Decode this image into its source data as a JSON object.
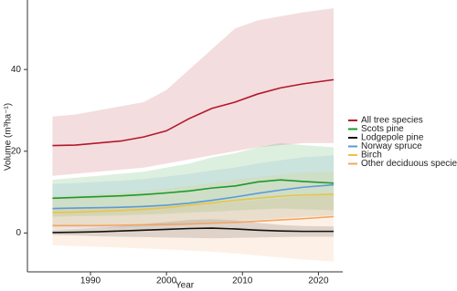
{
  "chart_data": {
    "type": "line",
    "x_label": "Year",
    "y_label": "Volume (m³ha⁻¹)",
    "x": [
      1985,
      1988,
      1991,
      1994,
      1997,
      2000,
      2003,
      2006,
      2009,
      2012,
      2015,
      2018,
      2022
    ],
    "xlim": [
      1981.7,
      2023.2
    ],
    "xticks": [
      1990,
      2000,
      2010,
      2020
    ],
    "ylim": [
      -9.5,
      57
    ],
    "yticks": [
      0,
      20,
      40
    ],
    "series": [
      {
        "name": "All tree species",
        "color": "#b2182b",
        "values": [
          21.4,
          21.5,
          22,
          22.5,
          23.5,
          25,
          28,
          30.5,
          32,
          34,
          35.5,
          36.5,
          37.5
        ],
        "upper": [
          28.5,
          29,
          30,
          31,
          32,
          35,
          40,
          45,
          50,
          52,
          53,
          54,
          55
        ],
        "lower": [
          14,
          14.5,
          15,
          15.5,
          16,
          17,
          18,
          19,
          20,
          21,
          21.5,
          22,
          22
        ]
      },
      {
        "name": "Scots pine",
        "color": "#1a9a2a",
        "values": [
          8.5,
          8.7,
          8.9,
          9.1,
          9.4,
          9.8,
          10.3,
          11,
          11.5,
          12.5,
          13,
          12.6,
          12.2
        ],
        "upper": [
          13,
          13.5,
          14,
          14.5,
          15,
          16,
          17,
          18.5,
          19.5,
          21,
          22,
          21.5,
          21
        ],
        "lower": [
          4,
          4.1,
          4.2,
          4.3,
          4.5,
          4.7,
          5,
          5.2,
          5.5,
          5.8,
          6,
          5.8,
          5.6
        ]
      },
      {
        "name": "Lodgepole pine",
        "color": "#111111",
        "values": [
          0.1,
          0.2,
          0.3,
          0.5,
          0.7,
          0.9,
          1.1,
          1.2,
          1,
          0.7,
          0.5,
          0.4,
          0.4
        ],
        "upper": [
          0.8,
          1,
          1.3,
          1.7,
          2.2,
          2.7,
          3.2,
          3.4,
          3.1,
          2.5,
          2,
          1.7,
          1.6
        ],
        "lower": [
          -0.5,
          -0.6,
          -0.8,
          -0.9,
          -1,
          -1.1,
          -1.2,
          -1.3,
          -1.2,
          -1.1,
          -1,
          -0.9,
          -0.9
        ]
      },
      {
        "name": "Norway spruce",
        "color": "#5b9bd5",
        "values": [
          6,
          6.1,
          6.2,
          6.3,
          6.5,
          6.8,
          7.3,
          8,
          8.8,
          9.7,
          10.5,
          11.2,
          11.8
        ],
        "upper": [
          12,
          12.2,
          12.5,
          12.8,
          13.2,
          13.8,
          14.5,
          15.3,
          16,
          17,
          17.8,
          18.5,
          19
        ],
        "lower": [
          1,
          1.1,
          1.2,
          1.3,
          1.5,
          1.7,
          2,
          2.4,
          2.8,
          3.2,
          3.6,
          4,
          4.3
        ]
      },
      {
        "name": "Birch",
        "color": "#e8c547",
        "values": [
          5,
          5.1,
          5.3,
          5.5,
          5.8,
          6.2,
          6.8,
          7.4,
          8,
          8.5,
          9,
          9.3,
          9.5
        ],
        "upper": [
          9,
          9.2,
          9.5,
          9.8,
          10.2,
          10.8,
          11.5,
          12.2,
          13,
          13.7,
          14.3,
          14.8,
          15
        ],
        "lower": [
          1.5,
          1.6,
          1.7,
          1.8,
          2,
          2.2,
          2.5,
          2.8,
          3,
          3.3,
          3.5,
          3.7,
          3.8
        ]
      },
      {
        "name": "Other deciduous species",
        "color": "#f4a460",
        "values": [
          1.8,
          1.8,
          1.8,
          1.9,
          2,
          2.1,
          2.2,
          2.4,
          2.6,
          2.9,
          3.2,
          3.5,
          4
        ],
        "upper": [
          6,
          6,
          6.1,
          6.2,
          6.4,
          6.6,
          6.9,
          7.2,
          7.6,
          8,
          8.5,
          9,
          9.6
        ],
        "lower": [
          -3,
          -3.2,
          -3.4,
          -3.6,
          -3.8,
          -4,
          -4.3,
          -4.6,
          -5,
          -5.5,
          -6,
          -6.5,
          -7
        ]
      }
    ]
  }
}
